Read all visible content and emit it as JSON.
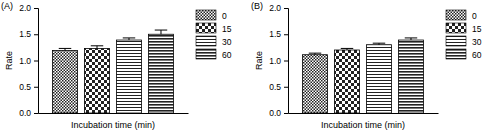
{
  "chart_data": [
    {
      "type": "bar",
      "title": "(A)",
      "x_label": "Incubation time (min)",
      "y_label": "Rate",
      "categories": [
        null
      ],
      "series": [
        {
          "name": "0",
          "color": "#222222",
          "values": [
            1.19
          ],
          "errors": [
            0.04
          ]
        },
        {
          "name": "15",
          "color": "#222222",
          "values": [
            1.23
          ],
          "errors": [
            0.05
          ]
        },
        {
          "name": "30",
          "color": "#222222",
          "values": [
            1.39
          ],
          "errors": [
            0.04
          ]
        },
        {
          "name": "60",
          "color": "#222222",
          "values": [
            1.5
          ],
          "errors": [
            0.08
          ]
        }
      ],
      "ylim": [
        0,
        2.0
      ],
      "yticks": [
        {
          "value": 0,
          "label": "0.0"
        },
        {
          "value": 0.5,
          "label": "0.5"
        },
        {
          "value": 1.0,
          "label": "1.0"
        },
        {
          "value": 1.5,
          "label": "1.5"
        },
        {
          "value": 2.0,
          "label": "2.0"
        }
      ],
      "grid": false,
      "legend": "right",
      "tick_labels": "y",
      "data_labels": false
    },
    {
      "type": "bar",
      "title": "(B)",
      "x_label": "Incubation time (min)",
      "y_label": "Rate",
      "categories": [
        null
      ],
      "series": [
        {
          "name": "0",
          "color": "#222222",
          "values": [
            1.11
          ],
          "errors": [
            0.03
          ]
        },
        {
          "name": "15",
          "color": "#222222",
          "values": [
            1.2
          ],
          "errors": [
            0.03
          ]
        },
        {
          "name": "30",
          "color": "#222222",
          "values": [
            1.3
          ],
          "errors": [
            0.03
          ]
        },
        {
          "name": "60",
          "color": "#222222",
          "values": [
            1.39
          ],
          "errors": [
            0.04
          ]
        }
      ],
      "ylim": [
        0,
        2.0
      ],
      "yticks": [
        {
          "value": 0,
          "label": "0.0"
        },
        {
          "value": 0.5,
          "label": "0.5"
        },
        {
          "value": 1.0,
          "label": "1.0"
        },
        {
          "value": 1.5,
          "label": "1.5"
        },
        {
          "value": 2.0,
          "label": "2.0"
        }
      ],
      "grid": false,
      "legend": "right",
      "tick_labels": "y",
      "data_labels": false
    }
  ]
}
